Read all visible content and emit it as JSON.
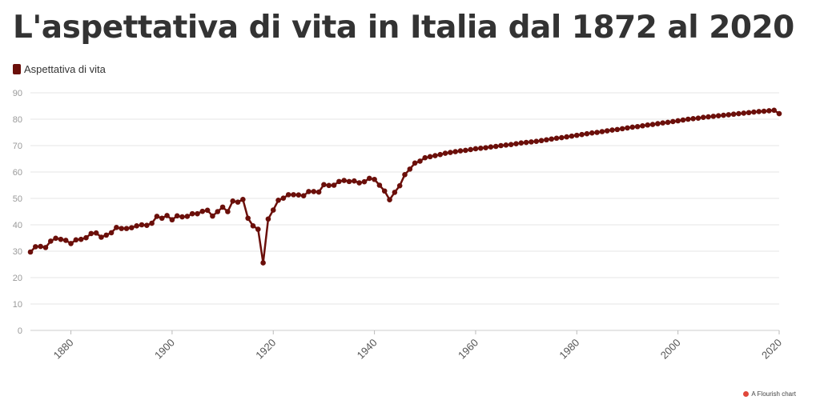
{
  "title": "L'aspettativa di vita in Italia dal 1872 al 2020",
  "credit": {
    "text": "A Flourish chart",
    "icon": "flourish-icon",
    "icon_color": "#e0473a"
  },
  "colors": {
    "series": "#6b0f0a",
    "grid": "#e6e6e6",
    "tick": "#999999"
  },
  "chart_data": {
    "type": "line",
    "title": "L'aspettativa di vita in Italia dal 1872 al 2020",
    "xlabel": "",
    "ylabel": "",
    "xlim": [
      1872,
      2020
    ],
    "ylim": [
      0,
      90
    ],
    "y_ticks": [
      0,
      10,
      20,
      30,
      40,
      50,
      60,
      70,
      80,
      90
    ],
    "x_ticks": [
      1880,
      1900,
      1920,
      1940,
      1960,
      1980,
      2000,
      2020
    ],
    "grid": true,
    "legend": "top-left",
    "series": [
      {
        "name": "Aspettativa di vita",
        "color": "#6b0f0a",
        "x": [
          1872,
          1873,
          1874,
          1875,
          1876,
          1877,
          1878,
          1879,
          1880,
          1881,
          1882,
          1883,
          1884,
          1885,
          1886,
          1887,
          1888,
          1889,
          1890,
          1891,
          1892,
          1893,
          1894,
          1895,
          1896,
          1897,
          1898,
          1899,
          1900,
          1901,
          1902,
          1903,
          1904,
          1905,
          1906,
          1907,
          1908,
          1909,
          1910,
          1911,
          1912,
          1913,
          1914,
          1915,
          1916,
          1917,
          1918,
          1919,
          1920,
          1921,
          1922,
          1923,
          1924,
          1925,
          1926,
          1927,
          1928,
          1929,
          1930,
          1931,
          1932,
          1933,
          1934,
          1935,
          1936,
          1937,
          1938,
          1939,
          1940,
          1941,
          1942,
          1943,
          1944,
          1945,
          1946,
          1947,
          1948,
          1949,
          1950,
          1951,
          1952,
          1953,
          1954,
          1955,
          1956,
          1957,
          1958,
          1959,
          1960,
          1961,
          1962,
          1963,
          1964,
          1965,
          1966,
          1967,
          1968,
          1969,
          1970,
          1971,
          1972,
          1973,
          1974,
          1975,
          1976,
          1977,
          1978,
          1979,
          1980,
          1981,
          1982,
          1983,
          1984,
          1985,
          1986,
          1987,
          1988,
          1989,
          1990,
          1991,
          1992,
          1993,
          1994,
          1995,
          1996,
          1997,
          1998,
          1999,
          2000,
          2001,
          2002,
          2003,
          2004,
          2005,
          2006,
          2007,
          2008,
          2009,
          2010,
          2011,
          2012,
          2013,
          2014,
          2015,
          2016,
          2017,
          2018,
          2019,
          2020
        ],
        "y": [
          29.7,
          31.7,
          31.8,
          31.4,
          33.8,
          34.9,
          34.5,
          34.1,
          32.9,
          34.3,
          34.5,
          35.1,
          36.7,
          36.9,
          35.3,
          36.1,
          37.0,
          39.0,
          38.6,
          38.6,
          38.9,
          39.6,
          40.0,
          39.8,
          40.6,
          43.2,
          42.5,
          43.5,
          41.9,
          43.4,
          43.0,
          43.2,
          44.2,
          44.2,
          45.1,
          45.5,
          43.3,
          45.0,
          46.7,
          45.0,
          49.0,
          48.6,
          49.6,
          42.5,
          39.6,
          38.3,
          25.6,
          42.2,
          45.6,
          49.3,
          50.1,
          51.4,
          51.4,
          51.3,
          51.0,
          52.6,
          52.6,
          52.4,
          55.2,
          54.9,
          55.0,
          56.4,
          56.8,
          56.4,
          56.6,
          55.9,
          56.3,
          57.6,
          57.2,
          55.0,
          52.8,
          49.5,
          52.3,
          54.8,
          59.0,
          61.1,
          63.4,
          64.1,
          65.4,
          65.8,
          66.2,
          66.6,
          67.1,
          67.4,
          67.7,
          68.0,
          68.2,
          68.5,
          68.8,
          69.0,
          69.2,
          69.5,
          69.7,
          70.0,
          70.2,
          70.4,
          70.7,
          71.0,
          71.2,
          71.4,
          71.6,
          71.9,
          72.2,
          72.5,
          72.8,
          73.0,
          73.3,
          73.6,
          73.9,
          74.2,
          74.5,
          74.8,
          75.0,
          75.3,
          75.6,
          75.9,
          76.1,
          76.4,
          76.7,
          77.0,
          77.2,
          77.5,
          77.8,
          78.0,
          78.3,
          78.6,
          78.8,
          79.1,
          79.4,
          79.7,
          80.0,
          80.2,
          80.4,
          80.7,
          80.9,
          81.1,
          81.3,
          81.5,
          81.7,
          81.9,
          82.1,
          82.3,
          82.5,
          82.7,
          82.9,
          83.0,
          83.2,
          83.4,
          82.1
        ]
      }
    ]
  }
}
